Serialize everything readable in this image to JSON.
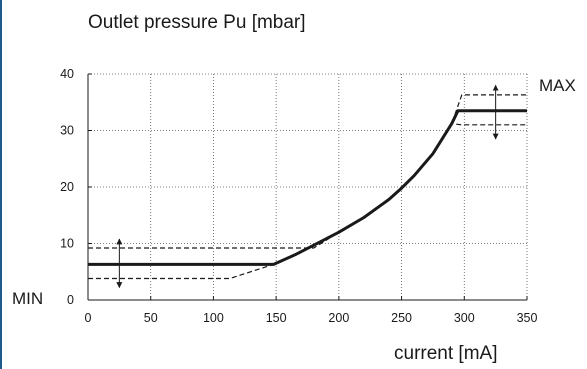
{
  "chart_data": {
    "type": "line",
    "title": "Outlet pressure Pu [mbar]",
    "xlabel": "current [mA]",
    "ylabel": "",
    "xlim": [
      0,
      350
    ],
    "ylim": [
      0,
      40
    ],
    "x_ticks": [
      0,
      50,
      100,
      150,
      200,
      250,
      300,
      350
    ],
    "y_ticks": [
      0,
      10,
      20,
      30,
      40
    ],
    "grid": true,
    "annotations": {
      "max_label": "MAX",
      "min_label": "MIN"
    },
    "series": [
      {
        "style": "solid",
        "x": [
          0,
          148,
          165,
          180,
          200,
          220,
          240,
          250,
          260,
          275,
          290,
          295,
          350
        ],
        "y": [
          6.3,
          6.3,
          8.0,
          9.7,
          12.0,
          14.6,
          17.8,
          19.8,
          22.0,
          25.9,
          31.2,
          33.5,
          33.5
        ]
      },
      {
        "style": "dashed",
        "x": [
          0,
          180,
          200,
          220,
          240,
          250,
          260,
          275,
          290,
          298,
          350
        ],
        "y": [
          9.2,
          9.2,
          12.0,
          14.6,
          17.8,
          19.8,
          22.0,
          25.9,
          31.2,
          36.3,
          36.3
        ]
      },
      {
        "style": "dashed",
        "x": [
          0,
          113,
          148,
          165,
          180,
          200,
          220,
          240,
          250,
          260,
          275,
          290,
          298,
          350
        ],
        "y": [
          3.8,
          3.8,
          6.3,
          8.0,
          9.7,
          12.0,
          14.6,
          17.8,
          19.8,
          22.0,
          25.9,
          31.2,
          31.0,
          31.0
        ]
      }
    ],
    "range_arrows": [
      {
        "x": 25,
        "y_low": 2.2,
        "y_high": 10.8
      },
      {
        "x": 325,
        "y_low": 28.5,
        "y_high": 38.0
      }
    ]
  },
  "colors": {
    "line": "#1a1a1a",
    "grid": "#555555",
    "left_rule": "#1f5a8c"
  }
}
